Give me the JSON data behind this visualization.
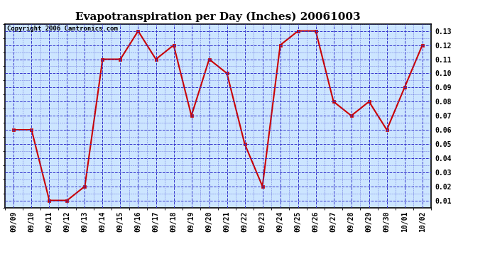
{
  "title": "Evapotranspiration per Day (Inches) 20061003",
  "copyright": "Copyright 2006 Cantronics.com",
  "x_labels": [
    "09/09",
    "09/10",
    "09/11",
    "09/12",
    "09/13",
    "09/14",
    "09/15",
    "09/16",
    "09/17",
    "09/18",
    "09/19",
    "09/20",
    "09/21",
    "09/22",
    "09/23",
    "09/24",
    "09/25",
    "09/26",
    "09/27",
    "09/28",
    "09/29",
    "09/30",
    "10/01",
    "10/02"
  ],
  "y_values": [
    0.06,
    0.06,
    0.01,
    0.01,
    0.02,
    0.11,
    0.11,
    0.13,
    0.11,
    0.12,
    0.07,
    0.11,
    0.1,
    0.05,
    0.02,
    0.12,
    0.13,
    0.13,
    0.08,
    0.07,
    0.08,
    0.06,
    0.09,
    0.12
  ],
  "ylim": [
    0.005,
    0.135
  ],
  "yticks": [
    0.01,
    0.02,
    0.03,
    0.04,
    0.05,
    0.06,
    0.07,
    0.08,
    0.09,
    0.1,
    0.11,
    0.12,
    0.13
  ],
  "line_color": "#cc0000",
  "marker_color": "#cc0000",
  "bg_color": "#cce5ff",
  "grid_color": "#3333cc",
  "title_fontsize": 11,
  "tick_fontsize": 7,
  "copyright_fontsize": 6.5,
  "fig_width": 6.9,
  "fig_height": 3.75
}
